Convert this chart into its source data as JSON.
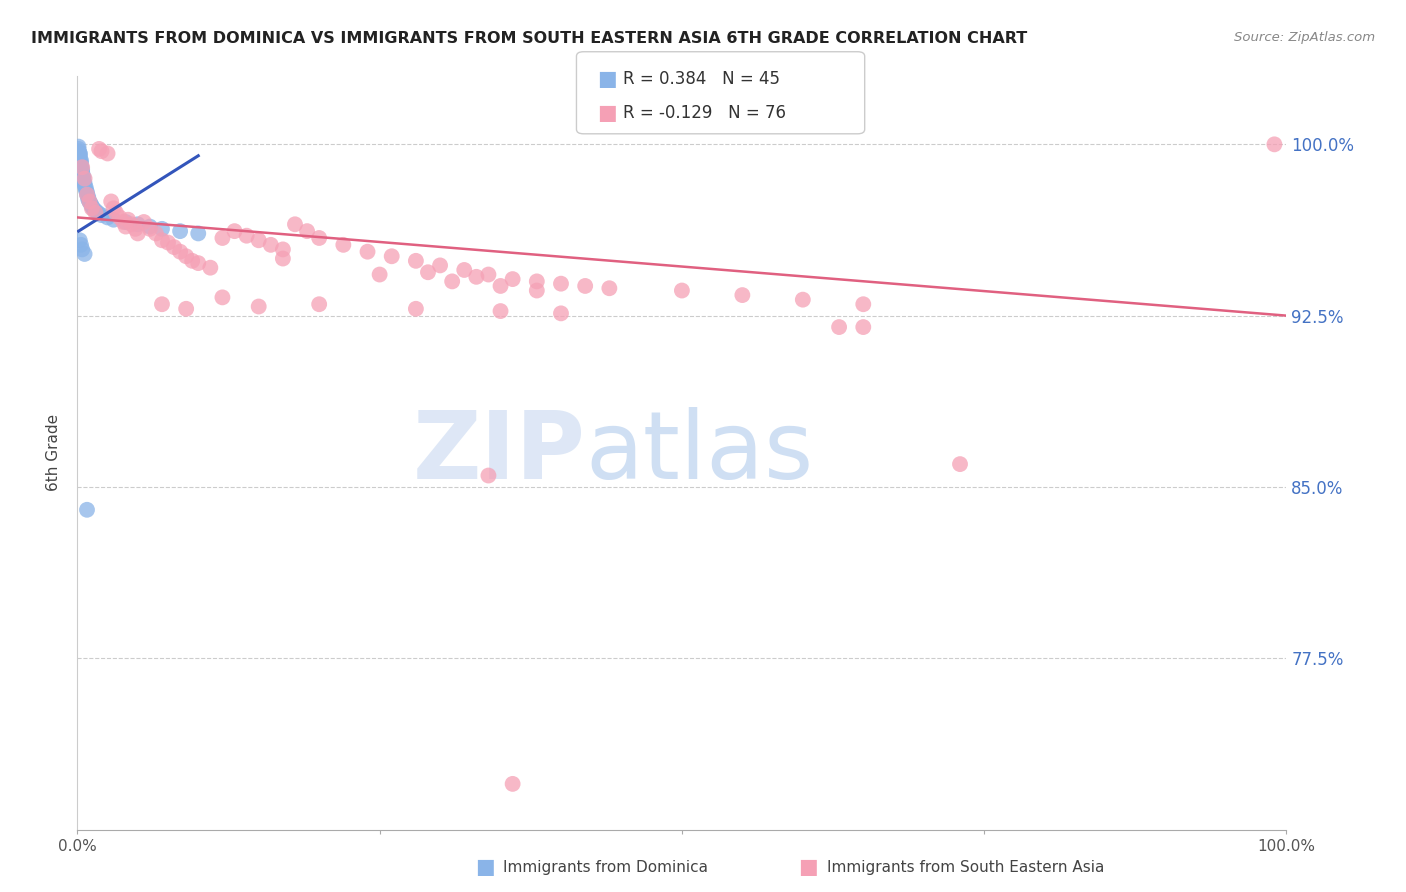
{
  "title": "IMMIGRANTS FROM DOMINICA VS IMMIGRANTS FROM SOUTH EASTERN ASIA 6TH GRADE CORRELATION CHART",
  "source": "Source: ZipAtlas.com",
  "ylabel": "6th Grade",
  "ytick_labels": [
    "100.0%",
    "92.5%",
    "85.0%",
    "77.5%"
  ],
  "ytick_values": [
    1.0,
    0.925,
    0.85,
    0.775
  ],
  "xlim": [
    0.0,
    1.0
  ],
  "ylim": [
    0.7,
    1.03
  ],
  "legend_blue_R": "0.384",
  "legend_blue_N": "45",
  "legend_pink_R": "-0.129",
  "legend_pink_N": "76",
  "blue_color": "#8AB4E8",
  "pink_color": "#F5A0B5",
  "trendline_blue_color": "#3355BB",
  "trendline_pink_color": "#E06080",
  "watermark_zip": "ZIP",
  "watermark_atlas": "atlas",
  "blue_scatter_x": [
    0.001,
    0.001,
    0.001,
    0.002,
    0.002,
    0.002,
    0.002,
    0.003,
    0.003,
    0.003,
    0.003,
    0.004,
    0.004,
    0.004,
    0.005,
    0.005,
    0.005,
    0.006,
    0.006,
    0.007,
    0.007,
    0.008,
    0.008,
    0.009,
    0.009,
    0.01,
    0.011,
    0.012,
    0.013,
    0.015,
    0.017,
    0.02,
    0.025,
    0.03,
    0.04,
    0.05,
    0.06,
    0.07,
    0.085,
    0.1,
    0.002,
    0.003,
    0.004,
    0.006,
    0.008
  ],
  "blue_scatter_y": [
    0.999,
    0.998,
    0.997,
    0.996,
    0.996,
    0.995,
    0.994,
    0.993,
    0.992,
    0.991,
    0.99,
    0.989,
    0.988,
    0.987,
    0.986,
    0.985,
    0.984,
    0.983,
    0.982,
    0.981,
    0.98,
    0.979,
    0.978,
    0.977,
    0.976,
    0.975,
    0.974,
    0.973,
    0.972,
    0.971,
    0.97,
    0.969,
    0.968,
    0.967,
    0.966,
    0.965,
    0.964,
    0.963,
    0.962,
    0.961,
    0.958,
    0.956,
    0.954,
    0.952,
    0.84
  ],
  "pink_scatter_x": [
    0.004,
    0.006,
    0.008,
    0.01,
    0.012,
    0.015,
    0.018,
    0.02,
    0.025,
    0.028,
    0.03,
    0.032,
    0.035,
    0.038,
    0.04,
    0.042,
    0.045,
    0.048,
    0.05,
    0.055,
    0.06,
    0.065,
    0.07,
    0.075,
    0.08,
    0.085,
    0.09,
    0.095,
    0.1,
    0.11,
    0.12,
    0.13,
    0.14,
    0.15,
    0.16,
    0.17,
    0.18,
    0.19,
    0.2,
    0.22,
    0.24,
    0.26,
    0.28,
    0.3,
    0.32,
    0.34,
    0.36,
    0.38,
    0.4,
    0.42,
    0.44,
    0.5,
    0.55,
    0.6,
    0.65,
    0.17,
    0.25,
    0.31,
    0.35,
    0.38,
    0.29,
    0.33,
    0.2,
    0.15,
    0.28,
    0.35,
    0.4,
    0.12,
    0.07,
    0.09,
    0.63,
    0.34,
    0.99,
    0.65,
    0.36,
    0.73
  ],
  "pink_scatter_y": [
    0.99,
    0.985,
    0.978,
    0.975,
    0.972,
    0.97,
    0.998,
    0.997,
    0.996,
    0.975,
    0.972,
    0.97,
    0.968,
    0.966,
    0.964,
    0.967,
    0.965,
    0.963,
    0.961,
    0.966,
    0.963,
    0.961,
    0.958,
    0.957,
    0.955,
    0.953,
    0.951,
    0.949,
    0.948,
    0.946,
    0.959,
    0.962,
    0.96,
    0.958,
    0.956,
    0.954,
    0.965,
    0.962,
    0.959,
    0.956,
    0.953,
    0.951,
    0.949,
    0.947,
    0.945,
    0.943,
    0.941,
    0.94,
    0.939,
    0.938,
    0.937,
    0.936,
    0.934,
    0.932,
    0.93,
    0.95,
    0.943,
    0.94,
    0.938,
    0.936,
    0.944,
    0.942,
    0.93,
    0.929,
    0.928,
    0.927,
    0.926,
    0.933,
    0.93,
    0.928,
    0.92,
    0.855,
    1.0,
    0.92,
    0.72,
    0.86
  ],
  "pink_trendline_x0": 0.0,
  "pink_trendline_x1": 1.0,
  "pink_trendline_y0": 0.968,
  "pink_trendline_y1": 0.925,
  "blue_trendline_x0": 0.001,
  "blue_trendline_x1": 0.1,
  "blue_trendline_y0": 0.962,
  "blue_trendline_y1": 0.995
}
